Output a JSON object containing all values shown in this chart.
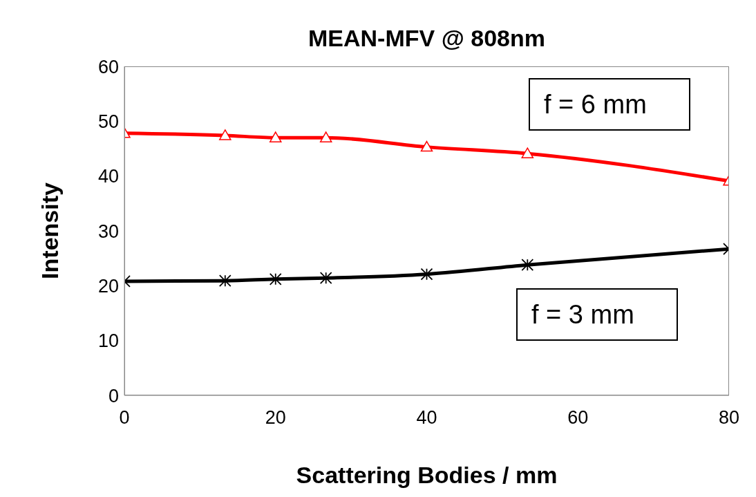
{
  "chart_data": {
    "type": "line",
    "title": "MEAN-MFV @ 808nm",
    "xlabel": "Scattering Bodies / mm",
    "ylabel": "Intensity",
    "x": [
      0,
      13.33,
      20,
      26.67,
      40,
      53.33,
      80
    ],
    "series": [
      {
        "name": "f = 6 mm",
        "color": "#ff0000",
        "marker": "triangle",
        "values": [
          47.8,
          47.4,
          47.0,
          47.0,
          45.3,
          44.1,
          39.1
        ]
      },
      {
        "name": "f = 3 mm",
        "color": "#000000",
        "marker": "cross",
        "values": [
          20.8,
          20.9,
          21.2,
          21.4,
          22.1,
          23.8,
          26.7
        ]
      }
    ],
    "xlim": [
      0,
      80
    ],
    "xticks": [
      0,
      20,
      40,
      60,
      80
    ],
    "ylim": [
      0,
      60
    ],
    "yticks": [
      0,
      10,
      20,
      30,
      40,
      50,
      60
    ],
    "grid": false,
    "legend": false
  }
}
